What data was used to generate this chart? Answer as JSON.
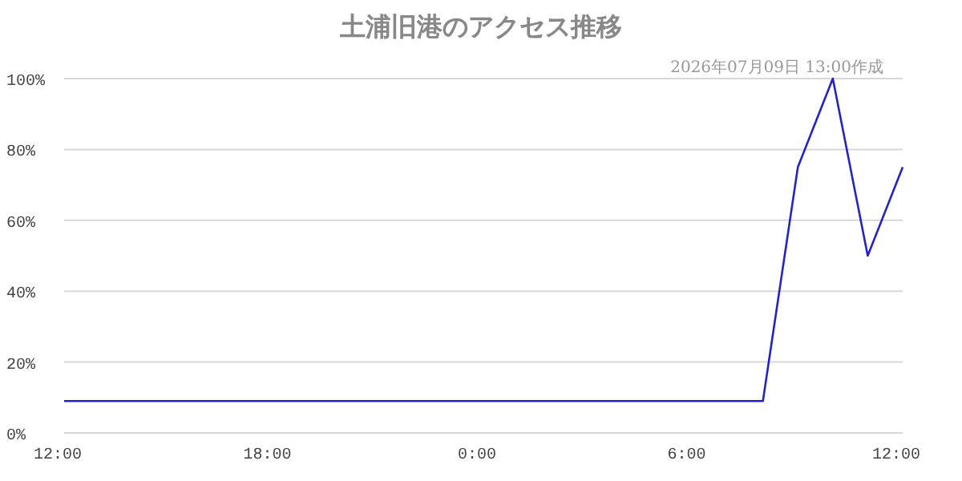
{
  "chart_data": {
    "type": "line",
    "title": "土浦旧港のアクセス推移",
    "subtitle": "2026年07月09日 13:00作成",
    "x": [
      "2026-07-08T12:00",
      "2026-07-09T08:00",
      "2026-07-09T09:00",
      "2026-07-09T10:00",
      "2026-07-09T11:00",
      "2026-07-09T12:00"
    ],
    "series": [
      {
        "color": "#2323c8",
        "values": [
          9,
          9,
          75,
          100,
          50,
          75
        ]
      }
    ],
    "xlim": [
      "2026-07-08T12:00",
      "2026-07-09T12:00"
    ],
    "xticks": [
      {
        "value": "2026-07-08T12:00",
        "label": "12:00"
      },
      {
        "value": "2026-07-08T18:00",
        "label": "18:00"
      },
      {
        "value": "2026-07-09T00:00",
        "label": "0:00"
      },
      {
        "value": "2026-07-09T06:00",
        "label": "6:00"
      },
      {
        "value": "2026-07-09T12:00",
        "label": "12:00"
      }
    ],
    "ylim": [
      0,
      100
    ],
    "yticks": [
      {
        "value": 0,
        "label": "0%"
      },
      {
        "value": 20,
        "label": "20%"
      },
      {
        "value": 40,
        "label": "40%"
      },
      {
        "value": 60,
        "label": "60%"
      },
      {
        "value": 80,
        "label": "80%"
      },
      {
        "value": 100,
        "label": "100%"
      }
    ],
    "grid": "y",
    "marker": "none",
    "line_style": "solid"
  }
}
